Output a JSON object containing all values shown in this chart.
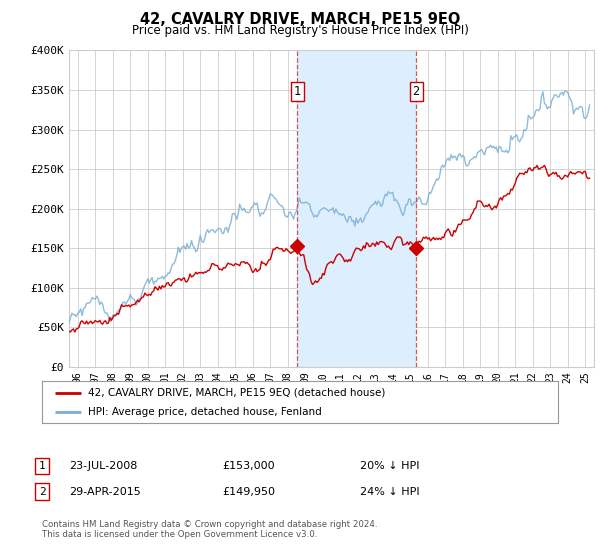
{
  "title": "42, CAVALRY DRIVE, MARCH, PE15 9EQ",
  "subtitle": "Price paid vs. HM Land Registry's House Price Index (HPI)",
  "legend_entry1": "42, CAVALRY DRIVE, MARCH, PE15 9EQ (detached house)",
  "legend_entry2": "HPI: Average price, detached house, Fenland",
  "annotation1_label": "1",
  "annotation1_date": "23-JUL-2008",
  "annotation1_price": "£153,000",
  "annotation1_hpi": "20% ↓ HPI",
  "annotation2_label": "2",
  "annotation2_date": "29-APR-2015",
  "annotation2_price": "£149,950",
  "annotation2_hpi": "24% ↓ HPI",
  "footer": "Contains HM Land Registry data © Crown copyright and database right 2024.\nThis data is licensed under the Open Government Licence v3.0.",
  "xmin": 1995.5,
  "xmax": 2025.5,
  "ymin": 0,
  "ymax": 400000,
  "vline1_x": 2008.55,
  "vline2_x": 2015.33,
  "marker1_x": 2008.55,
  "marker1_y": 153000,
  "marker2_x": 2015.33,
  "marker2_y": 149950,
  "shade_xmin": 2008.55,
  "shade_xmax": 2015.33,
  "red_color": "#cc0000",
  "blue_color": "#7bafd4",
  "shade_color": "#ddeeff",
  "vline_color": "#cc4444",
  "background_color": "#ffffff",
  "grid_color": "#cccccc",
  "yticks": [
    0,
    50000,
    100000,
    150000,
    200000,
    250000,
    300000,
    350000,
    400000
  ],
  "ytick_labels": [
    "£0",
    "£50K",
    "£100K",
    "£150K",
    "£200K",
    "£250K",
    "£300K",
    "£350K",
    "£400K"
  ]
}
